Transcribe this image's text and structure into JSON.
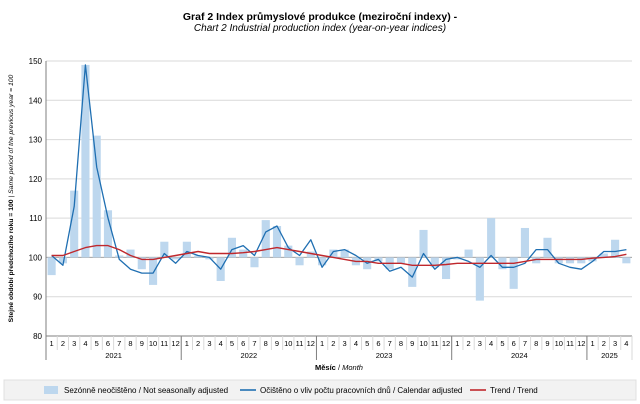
{
  "chart_data": {
    "type": "bar",
    "title": "Graf 2 Index průmyslové produkce (meziroční indexy) -",
    "subtitle": "Chart 2 Industrial production index (year-on-year indices)",
    "ylabel_cz": "Stejné období předchozího roku = 100",
    "ylabel_en": "Same period of the previous year = 100",
    "xlabel_cz": "Měsíc",
    "xlabel_en": "Month",
    "ylim": [
      80,
      150
    ],
    "yticks": [
      "80",
      "90",
      "100",
      "110",
      "120",
      "130",
      "140",
      "150"
    ],
    "baseline": 100,
    "years": [
      {
        "label": "2021",
        "months": 12
      },
      {
        "label": "2022",
        "months": 12
      },
      {
        "label": "2023",
        "months": 12
      },
      {
        "label": "2024",
        "months": 12
      },
      {
        "label": "2025",
        "months": 4
      }
    ],
    "categories": [
      "1",
      "2",
      "3",
      "4",
      "5",
      "6",
      "7",
      "8",
      "9",
      "10",
      "11",
      "12",
      "1",
      "2",
      "3",
      "4",
      "5",
      "6",
      "7",
      "8",
      "9",
      "10",
      "11",
      "12",
      "1",
      "2",
      "3",
      "4",
      "5",
      "6",
      "7",
      "8",
      "9",
      "10",
      "11",
      "12",
      "1",
      "2",
      "3",
      "4",
      "5",
      "6",
      "7",
      "8",
      "9",
      "10",
      "11",
      "12",
      "1",
      "2",
      "3",
      "4"
    ],
    "series": [
      {
        "name": "Sezónně neočištěno / Not seasonally adjusted",
        "kind": "bar",
        "color": "#bdd7ee",
        "values": [
          95.5,
          98.5,
          117,
          149,
          131,
          112,
          100.5,
          102,
          97,
          93,
          104,
          99.5,
          104,
          100.5,
          99.5,
          94,
          105,
          102,
          97.5,
          109.5,
          108,
          103,
          98,
          101.5,
          98,
          102,
          102,
          98,
          97,
          99,
          97,
          98.5,
          92.5,
          107,
          97.5,
          94.5,
          99.5,
          102,
          89,
          110,
          97,
          92,
          107.5,
          98.5,
          105,
          98.5,
          98.5,
          98.5,
          99,
          101,
          104.5,
          98.5
        ]
      },
      {
        "name": "Očištěno o vliv počtu pracovních dnů / Calendar adjusted",
        "kind": "line",
        "color": "#1f6fb2",
        "values": [
          100.5,
          98,
          113,
          149,
          123,
          110,
          99.5,
          97,
          96,
          96,
          101,
          98.5,
          101.5,
          100.5,
          100,
          97,
          102,
          103,
          100.5,
          106.5,
          108,
          102.5,
          100.5,
          104.5,
          97.5,
          101.5,
          102,
          100.5,
          98.5,
          99.5,
          96.5,
          97.5,
          95,
          101,
          97,
          99.5,
          100,
          99,
          97.5,
          100.5,
          97.5,
          97.5,
          98.5,
          102,
          102,
          98.5,
          97.5,
          97,
          99,
          101.5,
          101.5,
          102
        ]
      },
      {
        "name": "Trend / Trend",
        "kind": "line",
        "color": "#c0282d",
        "values": [
          100.5,
          100.5,
          101.5,
          102.5,
          103,
          103,
          102,
          100.5,
          99.5,
          99.5,
          100,
          100.5,
          101,
          101.5,
          101,
          101,
          101,
          101.2,
          101.5,
          102,
          102.5,
          102,
          101.5,
          101,
          100.5,
          100,
          99.5,
          99,
          99,
          98.5,
          98.5,
          98.5,
          98,
          98,
          98,
          98.2,
          98.5,
          98.5,
          98.5,
          98.5,
          98.5,
          98.5,
          99,
          99.5,
          99.5,
          99.5,
          99.5,
          99.5,
          99.8,
          100,
          100.2,
          100.8
        ]
      }
    ]
  },
  "legend": {
    "items": [
      {
        "label": "Sezónně neočištěno / Not seasonally adjusted",
        "kind": "bar",
        "color": "#bdd7ee"
      },
      {
        "label": "Očištěno o vliv počtu pracovních dnů / Calendar adjusted",
        "kind": "line",
        "color": "#1f6fb2"
      },
      {
        "label": "Trend / Trend",
        "kind": "line",
        "color": "#c0282d"
      }
    ]
  },
  "colors": {
    "gridline": "#d9d9d9",
    "baseline": "#a6a6a6",
    "axis": "#7f7f7f",
    "legend_bg": "#f2f2f2"
  }
}
